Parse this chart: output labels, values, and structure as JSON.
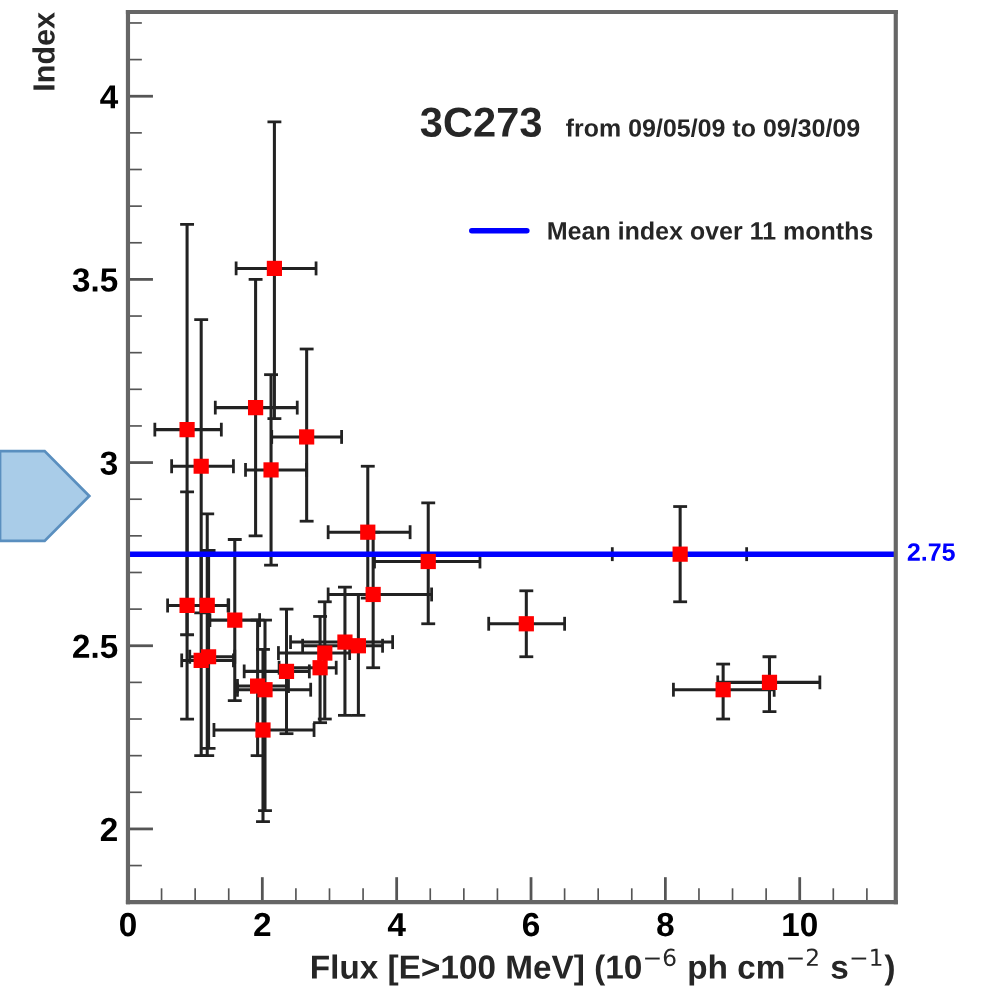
{
  "chart_data": {
    "type": "scatter",
    "title": "3C273",
    "subtitle": "from 09/05/09 to 09/30/09",
    "xlabel": "Flux [E>100 MeV] (10$^{−6}$ ph cm$^{−2}$ s$^{−1}$)",
    "ylabel": "Index",
    "xlim": [
      0,
      11.43
    ],
    "xticks": [
      0,
      2,
      4,
      6,
      8,
      10
    ],
    "ylim": [
      1.8,
      4.23
    ],
    "yticks": [
      2,
      2.5,
      3,
      3.5,
      4
    ],
    "grid": false,
    "legend": "top right",
    "marker": "square",
    "series": [
      {
        "color": "#ff0000",
        "x": [
          0.88,
          1.09,
          2.13,
          3.57,
          4.47,
          0.88,
          1.18,
          1.09,
          1.2,
          1.59,
          1.93,
          2.04,
          2.01,
          2.36,
          2.86,
          2.93,
          3.23,
          3.43,
          3.65,
          5.93,
          1.9,
          2.18,
          2.66,
          8.22,
          8.86,
          9.55
        ],
        "values": [
          3.09,
          2.99,
          2.98,
          2.81,
          2.73,
          2.61,
          2.61,
          2.46,
          2.47,
          2.57,
          2.39,
          2.38,
          2.27,
          2.43,
          2.44,
          2.48,
          2.51,
          2.5,
          2.64,
          2.56,
          3.15,
          3.53,
          3.07,
          2.75,
          2.38,
          2.4
        ],
        "errors": [
          [
            2.53,
            3.65
          ],
          [
            2.59,
            3.39
          ],
          [
            2.72,
            3.24
          ],
          [
            2.63,
            2.99
          ],
          [
            2.56,
            2.89
          ],
          [
            2.3,
            2.92
          ],
          [
            2.2,
            2.86
          ],
          [
            2.2,
            2.75
          ],
          [
            2.22,
            2.76
          ],
          [
            2.35,
            2.79
          ],
          [
            2.2,
            2.57
          ],
          [
            2.05,
            2.57
          ],
          [
            2.02,
            2.49
          ],
          [
            2.26,
            2.6
          ],
          [
            2.29,
            2.58
          ],
          [
            2.3,
            2.62
          ],
          [
            2.31,
            2.66
          ],
          [
            2.31,
            2.64
          ],
          [
            2.44,
            2.81
          ],
          [
            2.47,
            2.65
          ],
          [
            2.8,
            3.5
          ],
          [
            3.12,
            3.93
          ],
          [
            2.84,
            3.31
          ],
          [
            2.62,
            2.88
          ],
          [
            2.3,
            2.45
          ],
          [
            2.32,
            2.47
          ]
        ],
        "xerrors": [
          [
            0.4,
            1.39
          ],
          [
            0.65,
            1.57
          ],
          [
            1.75,
            2.66
          ],
          [
            2.98,
            4.2
          ],
          [
            3.67,
            5.24
          ],
          [
            0.59,
            1.49
          ],
          [
            0.9,
            1.5
          ],
          [
            0.8,
            1.57
          ],
          [
            0.92,
            1.59
          ],
          [
            1.22,
            1.96
          ],
          [
            1.63,
            2.39
          ],
          [
            1.63,
            2.72
          ],
          [
            1.28,
            2.77
          ],
          [
            1.73,
            2.7
          ],
          [
            2.25,
            3.1
          ],
          [
            2.24,
            3.3
          ],
          [
            2.42,
            3.94
          ],
          [
            2.6,
            3.79
          ],
          [
            2.98,
            4.52
          ],
          [
            5.37,
            6.5
          ],
          [
            1.3,
            2.52
          ],
          [
            1.61,
            2.8
          ],
          [
            2.14,
            3.18
          ],
          [
            7.21,
            9.21
          ],
          [
            8.12,
            9.62
          ],
          [
            8.78,
            10.3
          ]
        ]
      },
      {
        "type": "line",
        "name": "Mean index over 11 months",
        "color": "#0000ff",
        "marker": "none",
        "x": [
          0,
          11.43
        ],
        "values": [
          2.75,
          2.75
        ]
      }
    ],
    "annotations": [
      {
        "text": "2.75",
        "x": 11.43,
        "y": 2.75
      }
    ]
  }
}
